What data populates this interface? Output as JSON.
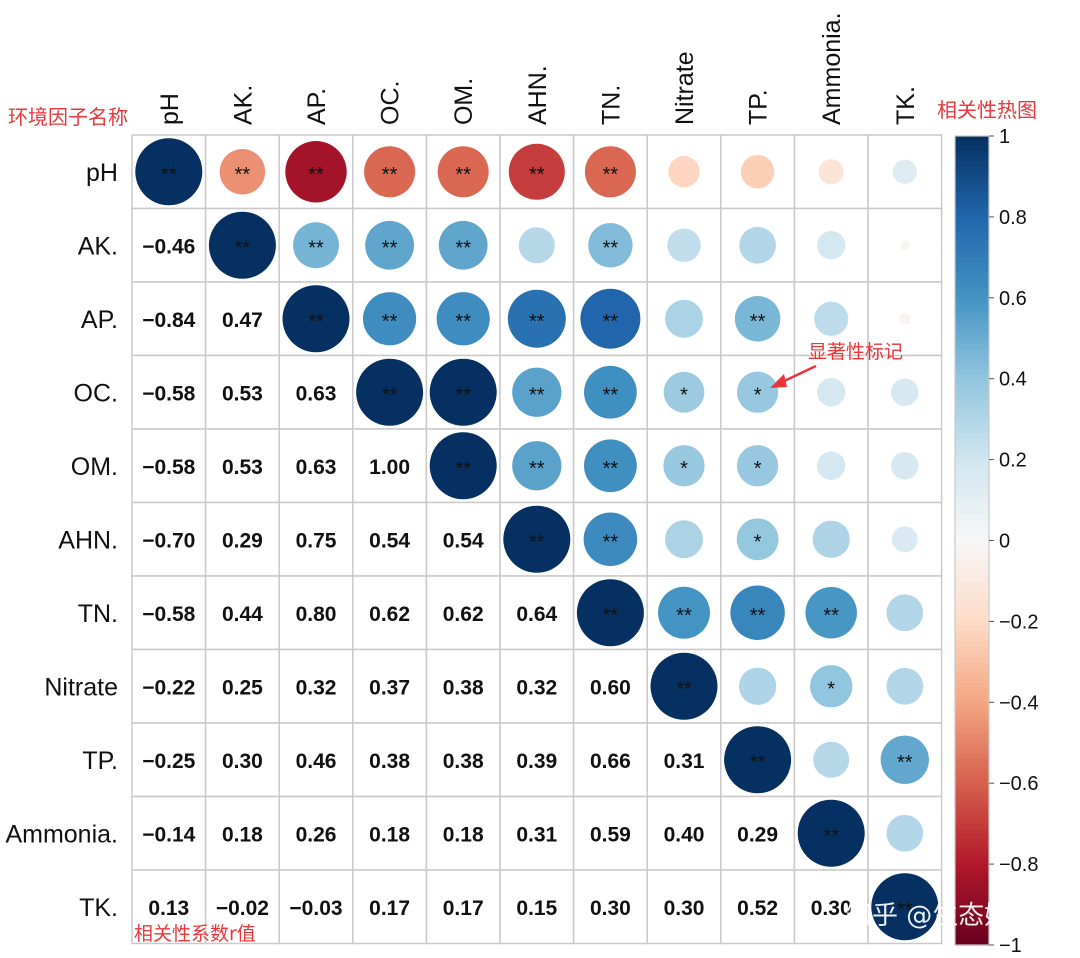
{
  "chart_data": {
    "type": "heatmap",
    "variables": [
      "pH",
      "AK.",
      "AP.",
      "OC.",
      "OM.",
      "AHN.",
      "TN.",
      "Nitrate",
      "TP.",
      "Ammonia.",
      "TK."
    ],
    "matrix": [
      [
        1.0,
        -0.46,
        -0.84,
        -0.58,
        -0.58,
        -0.7,
        -0.58,
        -0.22,
        -0.25,
        -0.14,
        0.13
      ],
      [
        -0.46,
        1.0,
        0.47,
        0.53,
        0.53,
        0.29,
        0.44,
        0.25,
        0.3,
        0.18,
        -0.02
      ],
      [
        -0.84,
        0.47,
        1.0,
        0.63,
        0.63,
        0.75,
        0.8,
        0.32,
        0.46,
        0.26,
        -0.03
      ],
      [
        -0.58,
        0.53,
        0.63,
        1.0,
        1.0,
        0.54,
        0.62,
        0.37,
        0.38,
        0.18,
        0.17
      ],
      [
        -0.58,
        0.53,
        0.63,
        1.0,
        1.0,
        0.54,
        0.62,
        0.38,
        0.38,
        0.18,
        0.17
      ],
      [
        -0.7,
        0.29,
        0.75,
        0.54,
        0.54,
        1.0,
        0.64,
        0.32,
        0.39,
        0.31,
        0.15
      ],
      [
        -0.58,
        0.44,
        0.8,
        0.62,
        0.62,
        0.64,
        1.0,
        0.6,
        0.66,
        0.59,
        0.3
      ],
      [
        -0.22,
        0.25,
        0.32,
        0.37,
        0.38,
        0.32,
        0.6,
        1.0,
        0.31,
        0.4,
        0.3
      ],
      [
        -0.25,
        0.3,
        0.46,
        0.38,
        0.38,
        0.39,
        0.66,
        0.31,
        1.0,
        0.29,
        0.52
      ],
      [
        -0.14,
        0.18,
        0.26,
        0.18,
        0.18,
        0.31,
        0.59,
        0.4,
        0.29,
        1.0,
        0.3
      ],
      [
        0.13,
        -0.02,
        -0.03,
        0.17,
        0.17,
        0.15,
        0.3,
        0.3,
        0.52,
        0.3,
        1.0
      ]
    ],
    "significance": [
      [
        "**",
        "**",
        "**",
        "**",
        "**",
        "**",
        "**",
        "",
        "",
        "",
        ""
      ],
      [
        "",
        "**",
        "**",
        "**",
        "**",
        "",
        "**",
        "",
        "",
        "",
        ""
      ],
      [
        "",
        "",
        "**",
        "**",
        "**",
        "**",
        "**",
        "",
        "**",
        "",
        ""
      ],
      [
        "",
        "",
        "",
        "**",
        "**",
        "**",
        "**",
        "*",
        "*",
        "",
        ""
      ],
      [
        "",
        "",
        "",
        "",
        "**",
        "**",
        "**",
        "*",
        "*",
        "",
        ""
      ],
      [
        "",
        "",
        "",
        "",
        "",
        "**",
        "**",
        "",
        "*",
        "",
        ""
      ],
      [
        "",
        "",
        "",
        "",
        "",
        "",
        "**",
        "**",
        "**",
        "**",
        ""
      ],
      [
        "",
        "",
        "",
        "",
        "",
        "",
        "",
        "**",
        "",
        "*",
        ""
      ],
      [
        "",
        "",
        "",
        "",
        "",
        "",
        "",
        "",
        "**",
        "",
        "**"
      ],
      [
        "",
        "",
        "",
        "",
        "",
        "",
        "",
        "",
        "",
        "**",
        ""
      ],
      [
        "",
        "",
        "",
        "",
        "",
        "",
        "",
        "",
        "",
        "",
        "**"
      ]
    ],
    "lower_triangle": "numbers",
    "upper_triangle": "circles",
    "color_scale": {
      "min": -1,
      "max": 1,
      "ticks": [
        "1",
        "0.8",
        "0.6",
        "0.4",
        "0.2",
        "0",
        "−0.2",
        "−0.4",
        "−0.6",
        "−0.8",
        "−1"
      ],
      "low_color": "#67001f",
      "mid_color": "#f7f7f7",
      "high_color": "#053061"
    },
    "annotations": {
      "var_names": "环境因子名称",
      "heatmap": "相关性热图",
      "significance": "显著性标记",
      "coefficient": "相关性系数r值"
    },
    "annotation_color": "#e8373a",
    "watermark": "知乎 @生态媛"
  }
}
